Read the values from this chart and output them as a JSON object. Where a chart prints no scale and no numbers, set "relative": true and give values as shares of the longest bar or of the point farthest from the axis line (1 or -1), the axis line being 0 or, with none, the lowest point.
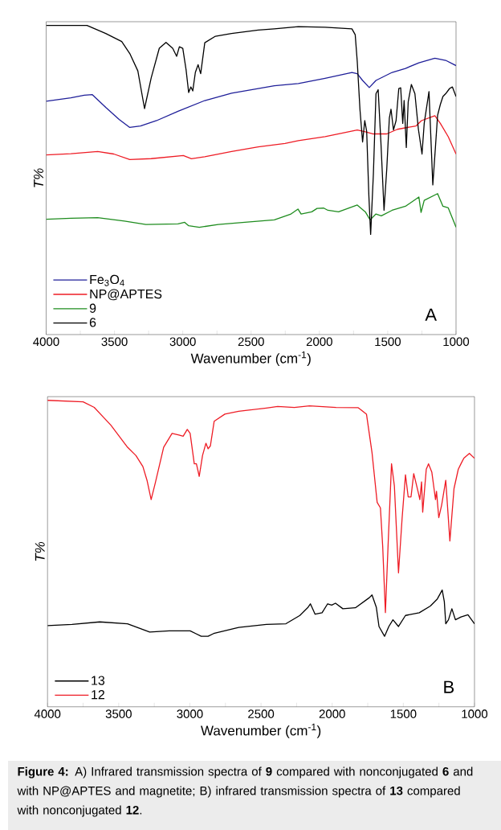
{
  "chart_data": [
    {
      "type": "line",
      "relative": true,
      "xlabel": "Wavenumber (cm$^{-1}$)",
      "ylabel": "T%",
      "xlim": [
        4000,
        1000
      ],
      "xticks": [
        4000,
        {
          "value": 3750,
          "label": null
        },
        3500,
        {
          "value": 3250,
          "label": null
        },
        3000,
        {
          "value": 2750,
          "label": null
        },
        2500,
        {
          "value": 2250,
          "label": null
        },
        2000,
        {
          "value": 1750,
          "label": null
        },
        1500,
        {
          "value": 1250,
          "label": null
        },
        1000
      ],
      "legend": "bottom left",
      "marker": "none",
      "line_style": "solid",
      "annotations": [
        "A"
      ],
      "series": [
        {
          "name": "Fe$_{3}$O$_{4}$",
          "color": "#1f1f99",
          "x": [
            4000,
            3819,
            3721,
            3662,
            3564,
            3466,
            3388,
            3309,
            3192,
            3035,
            2839,
            2643,
            2448,
            2330,
            2154,
            1958,
            1762,
            1723,
            1684,
            1635,
            1586,
            1468,
            1370,
            1272,
            1155,
            1076,
            1000
          ],
          "values": [
            0.755,
            0.766,
            0.774,
            0.776,
            0.735,
            0.696,
            0.67,
            0.675,
            0.692,
            0.722,
            0.757,
            0.781,
            0.796,
            0.805,
            0.812,
            0.829,
            0.848,
            0.844,
            0.822,
            0.799,
            0.822,
            0.848,
            0.861,
            0.879,
            0.894,
            0.887,
            0.87
          ]
        },
        {
          "name": "NP@APTES",
          "color": "#ee1c25",
          "x": [
            4000,
            3819,
            3623,
            3505,
            3388,
            3231,
            2996,
            2937,
            2839,
            2643,
            2448,
            2252,
            2154,
            1958,
            1723,
            1664,
            1605,
            1507,
            1429,
            1292,
            1253,
            1155,
            1115,
            1057,
            1000
          ],
          "values": [
            0.581,
            0.585,
            0.592,
            0.584,
            0.566,
            0.569,
            0.579,
            0.569,
            0.575,
            0.592,
            0.607,
            0.618,
            0.627,
            0.64,
            0.662,
            0.656,
            0.649,
            0.649,
            0.664,
            0.675,
            0.692,
            0.708,
            0.683,
            0.64,
            0.584
          ]
        },
        {
          "name": "9",
          "color": "#1e8c1e",
          "x": [
            4000,
            3819,
            3623,
            3427,
            3270,
            3035,
            2986,
            2957,
            2879,
            2741,
            2546,
            2330,
            2212,
            2157,
            2134,
            2056,
            2017,
            1968,
            1938,
            1860,
            1723,
            1664,
            1629,
            1586,
            1547,
            1468,
            1370,
            1272,
            1256,
            1233,
            1135,
            1096,
            1057,
            1000
          ],
          "values": [
            0.373,
            0.376,
            0.378,
            0.367,
            0.356,
            0.358,
            0.363,
            0.352,
            0.347,
            0.356,
            0.363,
            0.371,
            0.389,
            0.406,
            0.39,
            0.397,
            0.408,
            0.409,
            0.402,
            0.397,
            0.419,
            0.397,
            0.371,
            0.39,
            0.384,
            0.402,
            0.415,
            0.445,
            0.395,
            0.434,
            0.456,
            0.415,
            0.41,
            0.347
          ]
        },
        {
          "name": "6",
          "color": "#000000",
          "x": [
            4000,
            3701,
            3564,
            3447,
            3388,
            3329,
            3280,
            3231,
            3172,
            3123,
            3074,
            3045,
            3025,
            3000,
            2976,
            2957,
            2941,
            2927,
            2908,
            2888,
            2869,
            2839,
            2761,
            2643,
            2448,
            2330,
            2154,
            1958,
            1762,
            1738,
            1723,
            1703,
            1684,
            1668,
            1654,
            1638,
            1625,
            1605,
            1586,
            1570,
            1550,
            1527,
            1507,
            1488,
            1476,
            1458,
            1439,
            1419,
            1405,
            1390,
            1380,
            1364,
            1350,
            1327,
            1301,
            1276,
            1249,
            1233,
            1198,
            1170,
            1151,
            1135,
            1115,
            1096,
            1076,
            1047,
            1027,
            1000
          ],
          "values": [
            1.0,
            1.0,
            0.974,
            0.948,
            0.909,
            0.853,
            0.731,
            0.831,
            0.926,
            0.945,
            0.926,
            0.9,
            0.931,
            0.926,
            0.857,
            0.783,
            0.801,
            0.788,
            0.848,
            0.873,
            0.844,
            0.944,
            0.965,
            0.974,
            0.985,
            0.989,
            0.996,
            0.994,
            0.989,
            0.97,
            0.883,
            0.727,
            0.623,
            0.692,
            0.657,
            0.449,
            0.324,
            0.519,
            0.779,
            0.792,
            0.623,
            0.402,
            0.536,
            0.701,
            0.729,
            0.662,
            0.692,
            0.796,
            0.798,
            0.683,
            0.757,
            0.605,
            0.753,
            0.809,
            0.779,
            0.666,
            0.584,
            0.683,
            0.786,
            0.484,
            0.605,
            0.709,
            0.744,
            0.77,
            0.779,
            0.796,
            0.801,
            0.77
          ]
        }
      ]
    },
    {
      "type": "line",
      "relative": true,
      "xlabel": "Wavenumber (cm$^{-1}$)",
      "ylabel": "T%",
      "xlim": [
        4000,
        1000
      ],
      "xticks": [
        4000,
        {
          "value": 3750,
          "label": null
        },
        3500,
        {
          "value": 3250,
          "label": null
        },
        3000,
        {
          "value": 2750,
          "label": null
        },
        2500,
        {
          "value": 2250,
          "label": null
        },
        2000,
        {
          "value": 1750,
          "label": null
        },
        1500,
        {
          "value": 1250,
          "label": null
        },
        1000
      ],
      "legend": "bottom left",
      "marker": "none",
      "line_style": "solid",
      "annotations": [
        "B",
        "**Figure 4:** A) Infrared transmission spectra of **9** compared with nonconjugated **6** and with NP@APTES and magnetite; B) infrared transmission spectra of **13** compared with nonconjugated **12**."
      ],
      "series": [
        {
          "name": "13",
          "color": "#000000",
          "x": [
            4000,
            3828,
            3633,
            3438,
            3282,
            3145,
            2998,
            2959,
            2920,
            2872,
            2833,
            2657,
            2462,
            2325,
            2227,
            2169,
            2153,
            2120,
            2071,
            2032,
            2003,
            1977,
            1925,
            1837,
            1739,
            1720,
            1690,
            1671,
            1632,
            1602,
            1573,
            1534,
            1485,
            1388,
            1310,
            1261,
            1227,
            1212,
            1202,
            1183,
            1159,
            1134,
            1095,
            1046,
            1000
          ],
          "values": [
            0.265,
            0.269,
            0.277,
            0.271,
            0.244,
            0.248,
            0.248,
            0.239,
            0.23,
            0.23,
            0.239,
            0.259,
            0.269,
            0.271,
            0.298,
            0.325,
            0.336,
            0.302,
            0.307,
            0.336,
            0.332,
            0.338,
            0.32,
            0.323,
            0.356,
            0.365,
            0.325,
            0.262,
            0.23,
            0.262,
            0.284,
            0.262,
            0.298,
            0.307,
            0.329,
            0.352,
            0.381,
            0.343,
            0.271,
            0.284,
            0.32,
            0.284,
            0.293,
            0.3,
            0.271
          ]
        },
        {
          "name": "12",
          "color": "#ee1c25",
          "x": [
            4000,
            3750,
            3672,
            3555,
            3438,
            3379,
            3330,
            3301,
            3272,
            3243,
            3184,
            3125,
            3077,
            3047,
            3018,
            2998,
            2969,
            2954,
            2934,
            2911,
            2887,
            2872,
            2856,
            2829,
            2754,
            2657,
            2462,
            2383,
            2266,
            2159,
            1973,
            1817,
            1759,
            1720,
            1700,
            1684,
            1661,
            1645,
            1626,
            1606,
            1583,
            1563,
            1534,
            1509,
            1485,
            1466,
            1446,
            1427,
            1397,
            1384,
            1372,
            1364,
            1339,
            1323,
            1300,
            1274,
            1267,
            1251,
            1231,
            1202,
            1173,
            1144,
            1114,
            1095,
            1075,
            1036,
            1000
          ],
          "values": [
            1.0,
            0.995,
            0.977,
            0.919,
            0.847,
            0.82,
            0.784,
            0.739,
            0.676,
            0.73,
            0.847,
            0.892,
            0.887,
            0.883,
            0.905,
            0.892,
            0.793,
            0.793,
            0.752,
            0.82,
            0.86,
            0.842,
            0.851,
            0.932,
            0.955,
            0.964,
            0.975,
            0.98,
            0.977,
            0.982,
            0.977,
            0.976,
            0.955,
            0.829,
            0.739,
            0.667,
            0.649,
            0.523,
            0.307,
            0.541,
            0.793,
            0.721,
            0.437,
            0.613,
            0.757,
            0.685,
            0.685,
            0.761,
            0.703,
            0.676,
            0.734,
            0.635,
            0.775,
            0.793,
            0.766,
            0.676,
            0.703,
            0.617,
            0.658,
            0.739,
            0.541,
            0.712,
            0.775,
            0.793,
            0.811,
            0.827,
            0.811
          ]
        }
      ]
    }
  ]
}
